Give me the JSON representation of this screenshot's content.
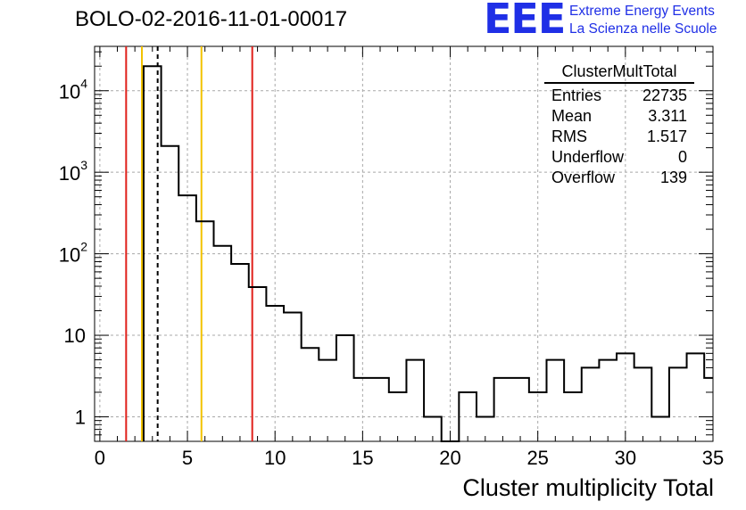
{
  "title": "BOLO-02-2016-11-01-00017",
  "logo": {
    "mark": "EEE",
    "line1": "Extreme Energy Events",
    "line2": "La Scienza nelle Scuole",
    "color": "#1f2fe6"
  },
  "stats": {
    "name": "ClusterMultTotal",
    "rows": [
      {
        "label": "Entries",
        "value": "22735"
      },
      {
        "label": "Mean",
        "value": "3.311"
      },
      {
        "label": "RMS",
        "value": "1.517"
      },
      {
        "label": "Underflow",
        "value": "0"
      },
      {
        "label": "Overflow",
        "value": "139"
      }
    ]
  },
  "chart_data": {
    "type": "histogram",
    "xlabel": "Cluster multiplicity Total",
    "ylabel": "",
    "xlim": [
      -0.3,
      35
    ],
    "ylim": [
      0.5,
      35000
    ],
    "ylog": true,
    "grid": true,
    "bin_width": 1,
    "bins": [
      {
        "x0": 2.5,
        "x1": 3.5,
        "y": 20000
      },
      {
        "x0": 3.5,
        "x1": 4.5,
        "y": 2100
      },
      {
        "x0": 4.5,
        "x1": 5.5,
        "y": 520
      },
      {
        "x0": 5.5,
        "x1": 6.5,
        "y": 250
      },
      {
        "x0": 6.5,
        "x1": 7.5,
        "y": 125
      },
      {
        "x0": 7.5,
        "x1": 8.5,
        "y": 75
      },
      {
        "x0": 8.5,
        "x1": 9.5,
        "y": 39
      },
      {
        "x0": 9.5,
        "x1": 10.5,
        "y": 23
      },
      {
        "x0": 10.5,
        "x1": 11.5,
        "y": 19
      },
      {
        "x0": 11.5,
        "x1": 12.5,
        "y": 7
      },
      {
        "x0": 12.5,
        "x1": 13.5,
        "y": 5
      },
      {
        "x0": 13.5,
        "x1": 14.5,
        "y": 10
      },
      {
        "x0": 14.5,
        "x1": 15.5,
        "y": 3
      },
      {
        "x0": 15.5,
        "x1": 16.5,
        "y": 3
      },
      {
        "x0": 16.5,
        "x1": 17.5,
        "y": 2
      },
      {
        "x0": 17.5,
        "x1": 18.5,
        "y": 5
      },
      {
        "x0": 18.5,
        "x1": 19.5,
        "y": 1
      },
      {
        "x0": 19.5,
        "x1": 20.5,
        "y": 0
      },
      {
        "x0": 20.5,
        "x1": 21.5,
        "y": 2
      },
      {
        "x0": 21.5,
        "x1": 22.5,
        "y": 1
      },
      {
        "x0": 22.5,
        "x1": 23.5,
        "y": 3
      },
      {
        "x0": 23.5,
        "x1": 24.5,
        "y": 3
      },
      {
        "x0": 24.5,
        "x1": 25.5,
        "y": 2
      },
      {
        "x0": 25.5,
        "x1": 26.5,
        "y": 5
      },
      {
        "x0": 26.5,
        "x1": 27.5,
        "y": 2
      },
      {
        "x0": 27.5,
        "x1": 28.5,
        "y": 4
      },
      {
        "x0": 28.5,
        "x1": 29.5,
        "y": 5
      },
      {
        "x0": 29.5,
        "x1": 30.5,
        "y": 6
      },
      {
        "x0": 30.5,
        "x1": 31.5,
        "y": 4
      },
      {
        "x0": 31.5,
        "x1": 32.5,
        "y": 1
      },
      {
        "x0": 32.5,
        "x1": 33.5,
        "y": 4
      },
      {
        "x0": 33.5,
        "x1": 34.5,
        "y": 6
      },
      {
        "x0": 34.5,
        "x1": 35.5,
        "y": 3
      }
    ],
    "x_ticks": [
      0,
      5,
      10,
      15,
      20,
      25,
      30,
      35
    ],
    "y_ticks": [
      {
        "value": 1,
        "base": "1",
        "exp": ""
      },
      {
        "value": 10,
        "base": "10",
        "exp": ""
      },
      {
        "value": 100,
        "base": "10",
        "exp": "2"
      },
      {
        "value": 1000,
        "base": "10",
        "exp": "3"
      },
      {
        "value": 10000,
        "base": "10",
        "exp": "4"
      }
    ],
    "vertical_lines": [
      {
        "x": 1.5,
        "color": "#e0201a",
        "style": "solid"
      },
      {
        "x": 2.4,
        "color": "#f2c200",
        "style": "solid"
      },
      {
        "x": 3.3,
        "color": "#000000",
        "style": "dashed"
      },
      {
        "x": 5.8,
        "color": "#f2c200",
        "style": "solid"
      },
      {
        "x": 8.7,
        "color": "#e0201a",
        "style": "solid"
      }
    ]
  }
}
